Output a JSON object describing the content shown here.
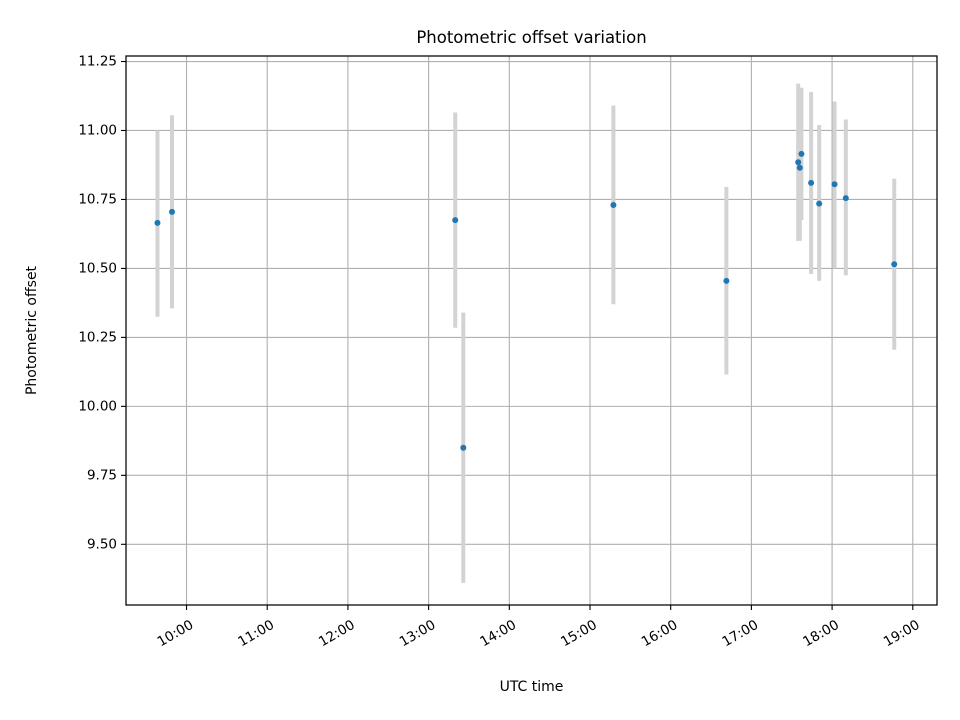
{
  "chart_data": {
    "type": "scatter",
    "title": "Photometric offset variation",
    "xlabel": "UTC time",
    "ylabel": "Photometric offset",
    "x_unit": "UTC hours",
    "xlim": [
      9.25,
      19.3
    ],
    "ylim": [
      9.28,
      11.27
    ],
    "x_ticks": [
      {
        "value": 10,
        "label": "10:00"
      },
      {
        "value": 11,
        "label": "11:00"
      },
      {
        "value": 12,
        "label": "12:00"
      },
      {
        "value": 13,
        "label": "13:00"
      },
      {
        "value": 14,
        "label": "14:00"
      },
      {
        "value": 15,
        "label": "15:00"
      },
      {
        "value": 16,
        "label": "16:00"
      },
      {
        "value": 17,
        "label": "17:00"
      },
      {
        "value": 18,
        "label": "18:00"
      },
      {
        "value": 19,
        "label": "19:00"
      }
    ],
    "y_ticks": [
      {
        "value": 9.5,
        "label": "9.50"
      },
      {
        "value": 9.75,
        "label": "9.75"
      },
      {
        "value": 10.0,
        "label": "10.00"
      },
      {
        "value": 10.25,
        "label": "10.25"
      },
      {
        "value": 10.5,
        "label": "10.50"
      },
      {
        "value": 10.75,
        "label": "10.75"
      },
      {
        "value": 11.0,
        "label": "11.00"
      },
      {
        "value": 11.25,
        "label": "11.25"
      }
    ],
    "grid": true,
    "legend": "none",
    "colors": {
      "points": "#1f77b4",
      "error_bars": "#d3d3d3",
      "grid": "#b0b0b0"
    },
    "points": [
      {
        "time": "09:38",
        "x": 9.64,
        "y": 10.665,
        "ylow": 10.325,
        "yhigh": 11.0
      },
      {
        "time": "09:50",
        "x": 9.82,
        "y": 10.705,
        "ylow": 10.355,
        "yhigh": 11.055
      },
      {
        "time": "13:20",
        "x": 13.33,
        "y": 10.675,
        "ylow": 10.285,
        "yhigh": 11.065
      },
      {
        "time": "13:26",
        "x": 13.43,
        "y": 9.85,
        "ylow": 9.36,
        "yhigh": 10.34
      },
      {
        "time": "15:17",
        "x": 15.29,
        "y": 10.73,
        "ylow": 10.37,
        "yhigh": 11.09
      },
      {
        "time": "16:41",
        "x": 16.69,
        "y": 10.455,
        "ylow": 10.115,
        "yhigh": 10.795
      },
      {
        "time": "17:35",
        "x": 17.58,
        "y": 10.885,
        "ylow": 10.6,
        "yhigh": 11.17
      },
      {
        "time": "17:36",
        "x": 17.6,
        "y": 10.865,
        "ylow": 10.6,
        "yhigh": 11.13
      },
      {
        "time": "17:37",
        "x": 17.62,
        "y": 10.915,
        "ylow": 10.675,
        "yhigh": 11.155
      },
      {
        "time": "17:44",
        "x": 17.74,
        "y": 10.81,
        "ylow": 10.48,
        "yhigh": 11.14
      },
      {
        "time": "17:50",
        "x": 17.84,
        "y": 10.735,
        "ylow": 10.455,
        "yhigh": 11.02
      },
      {
        "time": "18:02",
        "x": 18.03,
        "y": 10.805,
        "ylow": 10.5,
        "yhigh": 11.105
      },
      {
        "time": "18:10",
        "x": 18.17,
        "y": 10.755,
        "ylow": 10.475,
        "yhigh": 11.04
      },
      {
        "time": "18:46",
        "x": 18.77,
        "y": 10.515,
        "ylow": 10.205,
        "yhigh": 10.825
      }
    ]
  }
}
